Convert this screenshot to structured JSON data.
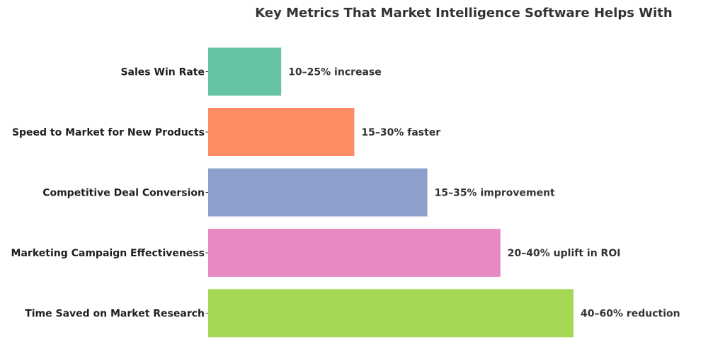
{
  "chart_data": {
    "type": "bar",
    "orientation": "horizontal",
    "title": "Key Metrics That Market Intelligence Software Helps With",
    "xlabel": "",
    "ylabel": "",
    "grid": false,
    "categories": [
      "Sales Win Rate",
      "Speed to Market for New Products",
      "Competitive Deal Conversion",
      "Marketing Campaign Effectiveness",
      "Time Saved on Market Research"
    ],
    "values": [
      1,
      2,
      3,
      4,
      5
    ],
    "data_labels": [
      "10–25% increase",
      "15–30% faster",
      "15–35% improvement",
      "20–40% uplift in ROI",
      "40–60% reduction"
    ],
    "colors": [
      "#66c2a5",
      "#fc8d62",
      "#8da0cb",
      "#e78ac3",
      "#a6d854"
    ],
    "xlim": [
      0,
      7
    ]
  }
}
